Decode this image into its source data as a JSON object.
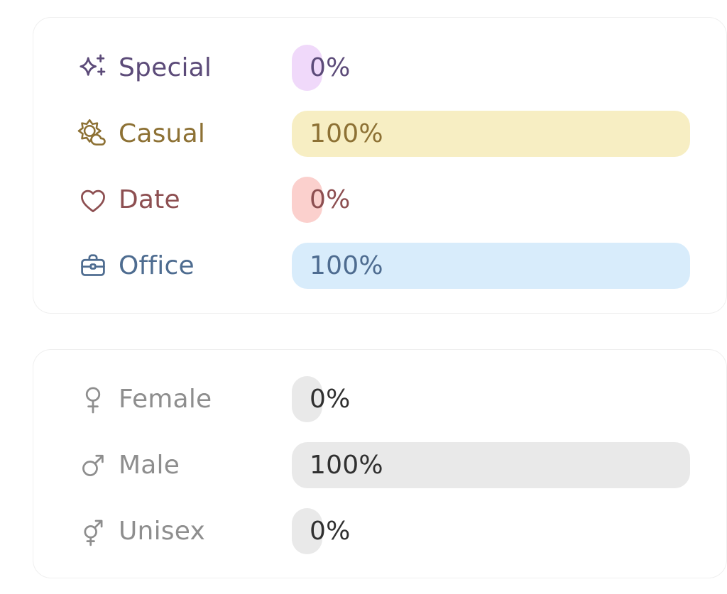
{
  "page": {
    "background": "#ffffff",
    "card_background": "#ffffff",
    "card_border_color": "#efefef"
  },
  "cards": [
    {
      "name": "occasion-stats",
      "rows": [
        {
          "icon": "sparkles-icon",
          "label": "Special",
          "value": "0%",
          "percent": 0,
          "label_color": "#5c4b79",
          "value_color": "#5c4b79",
          "bar_color": "#f0d9fa"
        },
        {
          "icon": "sun-cloud-icon",
          "label": "Casual",
          "value": "100%",
          "percent": 100,
          "label_color": "#8d7134",
          "value_color": "#8d7134",
          "bar_color": "#f7eec3"
        },
        {
          "icon": "heart-icon",
          "label": "Date",
          "value": "0%",
          "percent": 0,
          "label_color": "#8d4f51",
          "value_color": "#8d4f51",
          "bar_color": "#fbd0cd"
        },
        {
          "icon": "briefcase-icon",
          "label": "Office",
          "value": "100%",
          "percent": 100,
          "label_color": "#4e6c90",
          "value_color": "#4e6c90",
          "bar_color": "#d8ecfb"
        }
      ]
    },
    {
      "name": "gender-stats",
      "rows": [
        {
          "icon": "female-icon",
          "label": "Female",
          "value": "0%",
          "percent": 0,
          "label_color": "#8e8e8e",
          "value_color": "#303030",
          "bar_color": "#e9e9e9"
        },
        {
          "icon": "male-icon",
          "label": "Male",
          "value": "100%",
          "percent": 100,
          "label_color": "#8e8e8e",
          "value_color": "#303030",
          "bar_color": "#e9e9e9"
        },
        {
          "icon": "unisex-icon",
          "label": "Unisex",
          "value": "0%",
          "percent": 0,
          "label_color": "#8e8e8e",
          "value_color": "#303030",
          "bar_color": "#e9e9e9"
        }
      ]
    }
  ],
  "chart_data": [
    {
      "type": "bar",
      "orientation": "horizontal",
      "categories": [
        "Special",
        "Casual",
        "Date",
        "Office"
      ],
      "values": [
        0,
        100,
        0,
        100
      ],
      "unit": "%",
      "value_labels": [
        "0%",
        "100%",
        "0%",
        "100%"
      ]
    },
    {
      "type": "bar",
      "orientation": "horizontal",
      "categories": [
        "Female",
        "Male",
        "Unisex"
      ],
      "values": [
        0,
        100,
        0
      ],
      "unit": "%",
      "value_labels": [
        "0%",
        "100%",
        "0%"
      ]
    }
  ]
}
